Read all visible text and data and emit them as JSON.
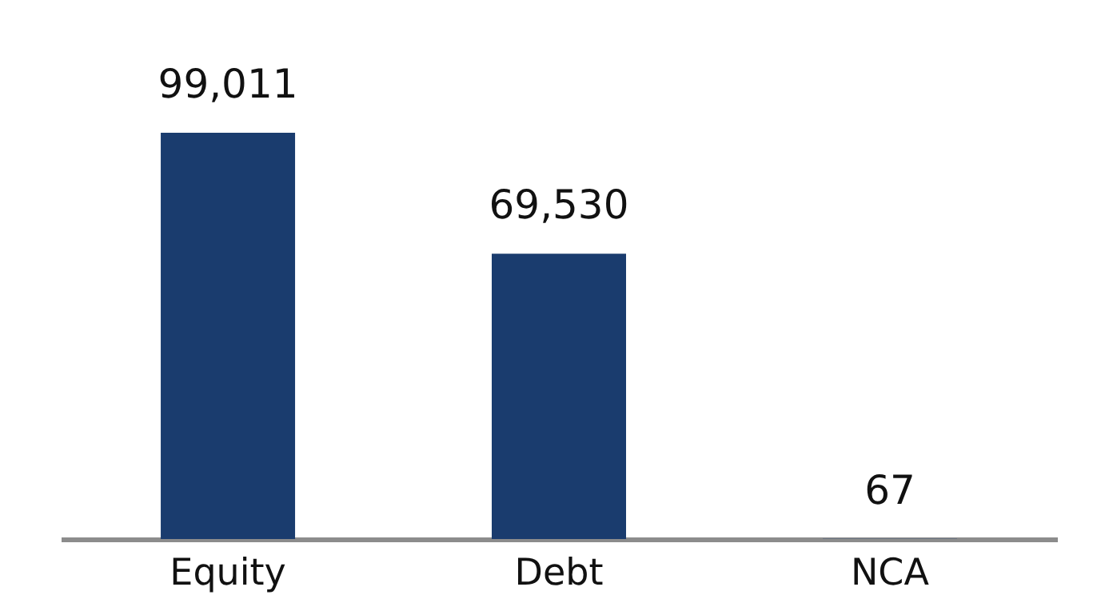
{
  "chart_data": {
    "type": "bar",
    "categories": [
      "Equity",
      "Debt",
      "NCA"
    ],
    "values": [
      99011,
      69530,
      67
    ],
    "color": "#1a3c6e",
    "value_labels": [
      "99,011",
      "69,530",
      "67"
    ],
    "grid": false
  }
}
